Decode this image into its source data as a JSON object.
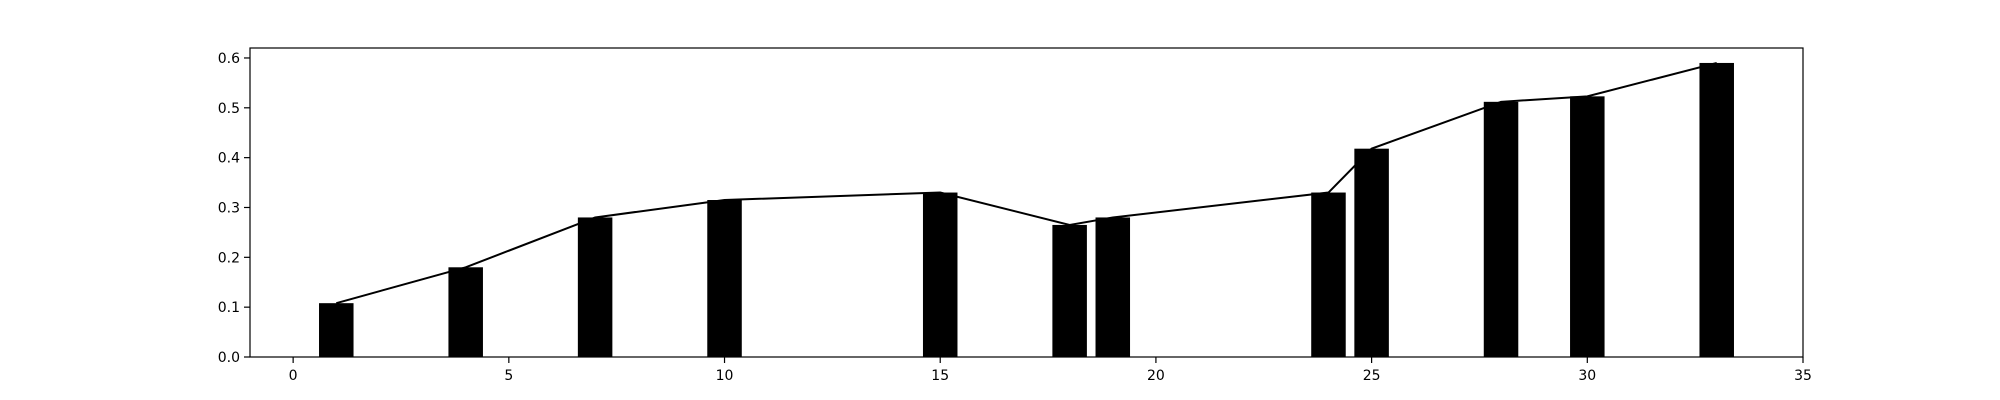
{
  "chart_data": {
    "type": "bar",
    "title": "",
    "xlabel": "",
    "ylabel": "",
    "xlim": [
      -1,
      35
    ],
    "ylim": [
      0,
      0.62
    ],
    "grid": false,
    "legend": "none",
    "x_ticks": [
      0,
      5,
      10,
      15,
      20,
      25,
      30,
      35
    ],
    "y_ticks": [
      0.0,
      0.1,
      0.2,
      0.3,
      0.4,
      0.5,
      0.6
    ],
    "bar_width": 0.8,
    "series": [
      {
        "type": "bar",
        "x": [
          1,
          4,
          7,
          10,
          15,
          18,
          19,
          24,
          25,
          28,
          30,
          33
        ],
        "values": [
          0.108,
          0.18,
          0.28,
          0.315,
          0.33,
          0.265,
          0.28,
          0.33,
          0.418,
          0.512,
          0.523,
          0.59
        ],
        "color": "#000000"
      },
      {
        "type": "line",
        "x": [
          1,
          4,
          7,
          10,
          15,
          18,
          19,
          24,
          25,
          28,
          30,
          33
        ],
        "values": [
          0.108,
          0.18,
          0.28,
          0.315,
          0.33,
          0.265,
          0.28,
          0.33,
          0.418,
          0.512,
          0.523,
          0.59
        ],
        "color": "#000000"
      }
    ]
  }
}
